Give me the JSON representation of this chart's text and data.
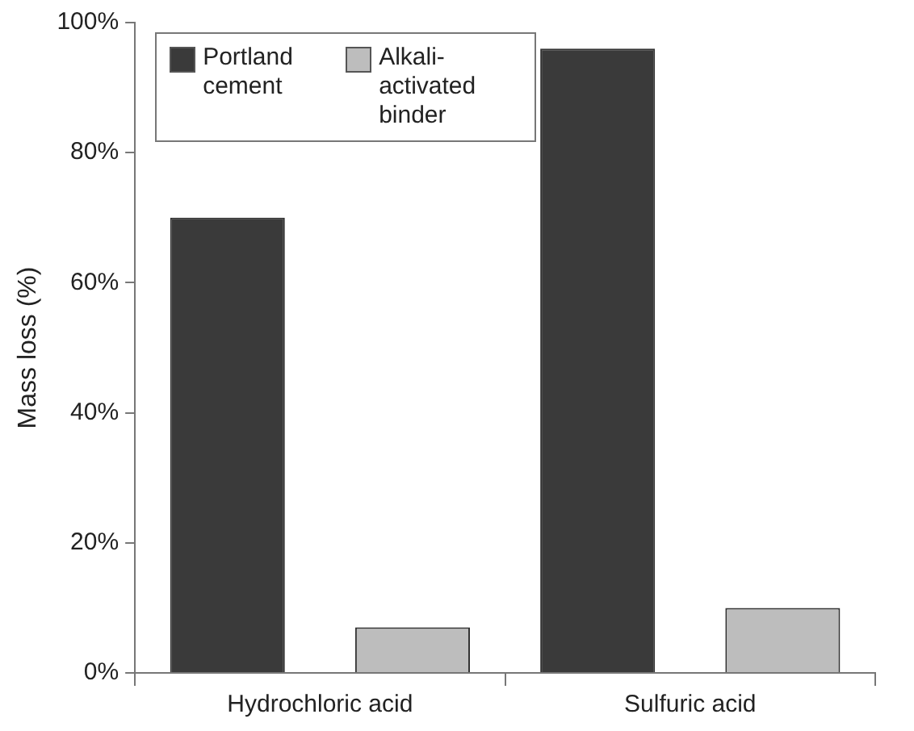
{
  "chart_data": {
    "type": "bar",
    "ylabel": "Mass loss (%)",
    "categories": [
      "Hydrochloric acid",
      "Sulfuric acid"
    ],
    "series": [
      {
        "name": "Portland cement",
        "color": "#3a3a3a",
        "values": [
          70,
          96
        ]
      },
      {
        "name": "Alkali-activated binder",
        "color": "#bdbdbd",
        "values": [
          7,
          10
        ]
      }
    ],
    "ylim": [
      0,
      100
    ],
    "yticks": [
      {
        "value": 0,
        "label": "0%"
      },
      {
        "value": 20,
        "label": "20%"
      },
      {
        "value": 40,
        "label": "40%"
      },
      {
        "value": 60,
        "label": "60%"
      },
      {
        "value": 80,
        "label": "80%"
      },
      {
        "value": 100,
        "label": "100%"
      }
    ],
    "grid": false,
    "legend": "top left"
  }
}
